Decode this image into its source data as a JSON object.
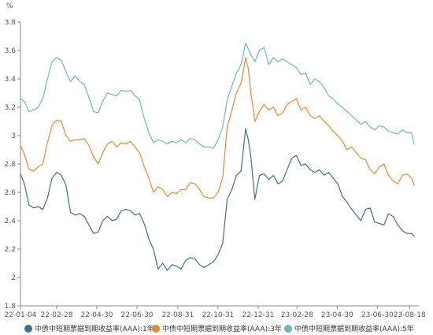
{
  "chart_data": {
    "type": "line",
    "ylabel": "%",
    "ylim": [
      1.8,
      3.8
    ],
    "yticks": [
      1.8,
      2,
      2.2,
      2.4,
      2.6,
      2.8,
      3,
      3.2,
      3.4,
      3.6,
      3.8
    ],
    "ytick_labels": [
      "1.8",
      "2",
      "2.2",
      "2.4",
      "2.6",
      "2.8",
      "3",
      "3.2",
      "3.4",
      "3.6",
      "3.8"
    ],
    "xlim": [
      "2022-01-04",
      "2023-09-01"
    ],
    "xtick_labels": [
      "22-01-04",
      "22-02-28",
      "22-04-30",
      "22-06-30",
      "22-08-31",
      "22-10-31",
      "22-12-31",
      "23-02-28",
      "23-04-30",
      "23-06-30",
      "23-08-18"
    ],
    "xtick_dates": [
      "2022-01-04",
      "2022-02-28",
      "2022-04-30",
      "2022-06-30",
      "2022-08-31",
      "2022-10-31",
      "2022-12-31",
      "2023-02-28",
      "2023-04-30",
      "2023-06-30",
      "2023-08-18"
    ],
    "grid": false,
    "legend_position": "bottom",
    "series": [
      {
        "name": "中债中短期票据到期收益率(AAA):1年",
        "color": "#3d6e96",
        "points": [
          [
            "2022-01-04",
            2.73
          ],
          [
            "2022-01-10",
            2.66
          ],
          [
            "2022-01-17",
            2.51
          ],
          [
            "2022-01-24",
            2.49
          ],
          [
            "2022-01-31",
            2.5
          ],
          [
            "2022-02-07",
            2.48
          ],
          [
            "2022-02-14",
            2.56
          ],
          [
            "2022-02-21",
            2.7
          ],
          [
            "2022-02-28",
            2.74
          ],
          [
            "2022-03-07",
            2.72
          ],
          [
            "2022-03-14",
            2.65
          ],
          [
            "2022-03-21",
            2.46
          ],
          [
            "2022-03-28",
            2.44
          ],
          [
            "2022-04-04",
            2.45
          ],
          [
            "2022-04-11",
            2.43
          ],
          [
            "2022-04-18",
            2.37
          ],
          [
            "2022-04-25",
            2.31
          ],
          [
            "2022-05-02",
            2.32
          ],
          [
            "2022-05-09",
            2.4
          ],
          [
            "2022-05-16",
            2.43
          ],
          [
            "2022-05-23",
            2.4
          ],
          [
            "2022-05-30",
            2.41
          ],
          [
            "2022-06-06",
            2.47
          ],
          [
            "2022-06-13",
            2.48
          ],
          [
            "2022-06-20",
            2.47
          ],
          [
            "2022-06-27",
            2.44
          ],
          [
            "2022-07-04",
            2.45
          ],
          [
            "2022-07-11",
            2.38
          ],
          [
            "2022-07-18",
            2.27
          ],
          [
            "2022-07-25",
            2.2
          ],
          [
            "2022-08-01",
            2.06
          ],
          [
            "2022-08-08",
            2.1
          ],
          [
            "2022-08-15",
            2.05
          ],
          [
            "2022-08-22",
            2.09
          ],
          [
            "2022-08-29",
            2.08
          ],
          [
            "2022-09-05",
            2.06
          ],
          [
            "2022-09-12",
            2.12
          ],
          [
            "2022-09-19",
            2.14
          ],
          [
            "2022-09-26",
            2.13
          ],
          [
            "2022-10-03",
            2.09
          ],
          [
            "2022-10-10",
            2.07
          ],
          [
            "2022-10-17",
            2.09
          ],
          [
            "2022-10-24",
            2.11
          ],
          [
            "2022-10-31",
            2.16
          ],
          [
            "2022-11-07",
            2.24
          ],
          [
            "2022-11-14",
            2.55
          ],
          [
            "2022-11-21",
            2.62
          ],
          [
            "2022-11-28",
            2.72
          ],
          [
            "2022-12-05",
            2.75
          ],
          [
            "2022-12-12",
            3.05
          ],
          [
            "2022-12-16",
            2.97
          ],
          [
            "2022-12-20",
            2.85
          ],
          [
            "2022-12-26",
            2.55
          ],
          [
            "2023-01-02",
            2.72
          ],
          [
            "2023-01-09",
            2.73
          ],
          [
            "2023-01-16",
            2.69
          ],
          [
            "2023-01-23",
            2.72
          ],
          [
            "2023-01-30",
            2.66
          ],
          [
            "2023-02-06",
            2.68
          ],
          [
            "2023-02-13",
            2.76
          ],
          [
            "2023-02-20",
            2.84
          ],
          [
            "2023-02-27",
            2.86
          ],
          [
            "2023-03-06",
            2.79
          ],
          [
            "2023-03-13",
            2.8
          ],
          [
            "2023-03-20",
            2.76
          ],
          [
            "2023-03-27",
            2.74
          ],
          [
            "2023-04-03",
            2.76
          ],
          [
            "2023-04-10",
            2.72
          ],
          [
            "2023-04-17",
            2.74
          ],
          [
            "2023-04-24",
            2.7
          ],
          [
            "2023-05-01",
            2.66
          ],
          [
            "2023-05-08",
            2.57
          ],
          [
            "2023-05-15",
            2.53
          ],
          [
            "2023-05-22",
            2.48
          ],
          [
            "2023-05-29",
            2.44
          ],
          [
            "2023-06-05",
            2.4
          ],
          [
            "2023-06-12",
            2.48
          ],
          [
            "2023-06-19",
            2.49
          ],
          [
            "2023-06-26",
            2.39
          ],
          [
            "2023-07-03",
            2.38
          ],
          [
            "2023-07-10",
            2.37
          ],
          [
            "2023-07-17",
            2.45
          ],
          [
            "2023-07-24",
            2.43
          ],
          [
            "2023-07-31",
            2.37
          ],
          [
            "2023-08-07",
            2.33
          ],
          [
            "2023-08-14",
            2.31
          ],
          [
            "2023-08-21",
            2.31
          ],
          [
            "2023-08-25",
            2.29
          ]
        ]
      },
      {
        "name": "中债中短期票据到期收益率(AAA):3年",
        "color": "#e58a2e",
        "points": [
          [
            "2022-01-04",
            2.93
          ],
          [
            "2022-01-10",
            2.87
          ],
          [
            "2022-01-17",
            2.76
          ],
          [
            "2022-01-24",
            2.75
          ],
          [
            "2022-01-31",
            2.78
          ],
          [
            "2022-02-07",
            2.8
          ],
          [
            "2022-02-14",
            2.95
          ],
          [
            "2022-02-21",
            3.07
          ],
          [
            "2022-02-28",
            3.11
          ],
          [
            "2022-03-07",
            3.1
          ],
          [
            "2022-03-14",
            3.0
          ],
          [
            "2022-03-21",
            2.96
          ],
          [
            "2022-03-28",
            2.97
          ],
          [
            "2022-04-04",
            2.97
          ],
          [
            "2022-04-11",
            2.98
          ],
          [
            "2022-04-18",
            2.93
          ],
          [
            "2022-04-25",
            2.85
          ],
          [
            "2022-05-02",
            2.8
          ],
          [
            "2022-05-09",
            2.88
          ],
          [
            "2022-05-16",
            2.94
          ],
          [
            "2022-05-23",
            2.96
          ],
          [
            "2022-05-30",
            2.92
          ],
          [
            "2022-06-06",
            2.95
          ],
          [
            "2022-06-13",
            2.94
          ],
          [
            "2022-06-20",
            2.96
          ],
          [
            "2022-06-27",
            2.92
          ],
          [
            "2022-07-04",
            2.88
          ],
          [
            "2022-07-11",
            2.78
          ],
          [
            "2022-07-18",
            2.7
          ],
          [
            "2022-07-25",
            2.6
          ],
          [
            "2022-08-01",
            2.64
          ],
          [
            "2022-08-08",
            2.62
          ],
          [
            "2022-08-15",
            2.57
          ],
          [
            "2022-08-22",
            2.6
          ],
          [
            "2022-08-29",
            2.59
          ],
          [
            "2022-09-05",
            2.62
          ],
          [
            "2022-09-12",
            2.62
          ],
          [
            "2022-09-19",
            2.67
          ],
          [
            "2022-09-26",
            2.66
          ],
          [
            "2022-10-03",
            2.62
          ],
          [
            "2022-10-10",
            2.57
          ],
          [
            "2022-10-17",
            2.56
          ],
          [
            "2022-10-24",
            2.56
          ],
          [
            "2022-10-31",
            2.6
          ],
          [
            "2022-11-07",
            2.7
          ],
          [
            "2022-11-14",
            3.06
          ],
          [
            "2022-11-21",
            3.18
          ],
          [
            "2022-11-28",
            3.3
          ],
          [
            "2022-12-05",
            3.37
          ],
          [
            "2022-12-12",
            3.55
          ],
          [
            "2022-12-16",
            3.47
          ],
          [
            "2022-12-20",
            3.3
          ],
          [
            "2022-12-26",
            3.1
          ],
          [
            "2023-01-02",
            3.17
          ],
          [
            "2023-01-09",
            3.22
          ],
          [
            "2023-01-16",
            3.18
          ],
          [
            "2023-01-23",
            3.2
          ],
          [
            "2023-01-30",
            3.14
          ],
          [
            "2023-02-06",
            3.16
          ],
          [
            "2023-02-13",
            3.22
          ],
          [
            "2023-02-20",
            3.24
          ],
          [
            "2023-02-27",
            3.26
          ],
          [
            "2023-03-06",
            3.18
          ],
          [
            "2023-03-13",
            3.2
          ],
          [
            "2023-03-20",
            3.14
          ],
          [
            "2023-03-27",
            3.12
          ],
          [
            "2023-04-03",
            3.14
          ],
          [
            "2023-04-10",
            3.1
          ],
          [
            "2023-04-17",
            3.07
          ],
          [
            "2023-04-24",
            3.03
          ],
          [
            "2023-05-01",
            3.0
          ],
          [
            "2023-05-08",
            2.96
          ],
          [
            "2023-05-15",
            2.9
          ],
          [
            "2023-05-22",
            2.92
          ],
          [
            "2023-05-29",
            2.88
          ],
          [
            "2023-06-05",
            2.84
          ],
          [
            "2023-06-12",
            2.83
          ],
          [
            "2023-06-19",
            2.76
          ],
          [
            "2023-06-26",
            2.73
          ],
          [
            "2023-07-03",
            2.78
          ],
          [
            "2023-07-10",
            2.8
          ],
          [
            "2023-07-17",
            2.72
          ],
          [
            "2023-07-24",
            2.68
          ],
          [
            "2023-07-31",
            2.66
          ],
          [
            "2023-08-07",
            2.72
          ],
          [
            "2023-08-14",
            2.73
          ],
          [
            "2023-08-21",
            2.7
          ],
          [
            "2023-08-25",
            2.65
          ]
        ]
      },
      {
        "name": "中债中短期票据到期收益率(AAA):5年",
        "color": "#6cb9b5",
        "points": [
          [
            "2022-01-04",
            3.26
          ],
          [
            "2022-01-10",
            3.24
          ],
          [
            "2022-01-17",
            3.17
          ],
          [
            "2022-01-24",
            3.18
          ],
          [
            "2022-01-31",
            3.2
          ],
          [
            "2022-02-07",
            3.26
          ],
          [
            "2022-02-14",
            3.4
          ],
          [
            "2022-02-21",
            3.52
          ],
          [
            "2022-02-28",
            3.55
          ],
          [
            "2022-03-07",
            3.53
          ],
          [
            "2022-03-14",
            3.45
          ],
          [
            "2022-03-21",
            3.38
          ],
          [
            "2022-03-28",
            3.42
          ],
          [
            "2022-04-04",
            3.38
          ],
          [
            "2022-04-11",
            3.36
          ],
          [
            "2022-04-18",
            3.27
          ],
          [
            "2022-04-25",
            3.17
          ],
          [
            "2022-05-02",
            3.16
          ],
          [
            "2022-05-09",
            3.24
          ],
          [
            "2022-05-16",
            3.3
          ],
          [
            "2022-05-23",
            3.29
          ],
          [
            "2022-05-30",
            3.28
          ],
          [
            "2022-06-06",
            3.32
          ],
          [
            "2022-06-13",
            3.31
          ],
          [
            "2022-06-20",
            3.32
          ],
          [
            "2022-06-27",
            3.28
          ],
          [
            "2022-07-04",
            3.25
          ],
          [
            "2022-07-11",
            3.12
          ],
          [
            "2022-07-18",
            3.02
          ],
          [
            "2022-07-25",
            2.95
          ],
          [
            "2022-08-01",
            2.97
          ],
          [
            "2022-08-08",
            2.96
          ],
          [
            "2022-08-15",
            2.94
          ],
          [
            "2022-08-22",
            2.96
          ],
          [
            "2022-08-29",
            2.95
          ],
          [
            "2022-09-05",
            2.97
          ],
          [
            "2022-09-12",
            2.95
          ],
          [
            "2022-09-19",
            2.98
          ],
          [
            "2022-09-26",
            2.97
          ],
          [
            "2022-10-03",
            2.94
          ],
          [
            "2022-10-10",
            2.92
          ],
          [
            "2022-10-17",
            2.92
          ],
          [
            "2022-10-24",
            2.91
          ],
          [
            "2022-10-31",
            2.97
          ],
          [
            "2022-11-07",
            3.06
          ],
          [
            "2022-11-14",
            3.25
          ],
          [
            "2022-11-21",
            3.35
          ],
          [
            "2022-11-28",
            3.44
          ],
          [
            "2022-12-05",
            3.5
          ],
          [
            "2022-12-12",
            3.65
          ],
          [
            "2022-12-16",
            3.61
          ],
          [
            "2022-12-20",
            3.57
          ],
          [
            "2022-12-26",
            3.52
          ],
          [
            "2023-01-02",
            3.6
          ],
          [
            "2023-01-09",
            3.62
          ],
          [
            "2023-01-16",
            3.5
          ],
          [
            "2023-01-23",
            3.55
          ],
          [
            "2023-01-30",
            3.52
          ],
          [
            "2023-02-06",
            3.54
          ],
          [
            "2023-02-13",
            3.52
          ],
          [
            "2023-02-20",
            3.5
          ],
          [
            "2023-02-27",
            3.48
          ],
          [
            "2023-03-06",
            3.43
          ],
          [
            "2023-03-13",
            3.44
          ],
          [
            "2023-03-20",
            3.36
          ],
          [
            "2023-03-27",
            3.4
          ],
          [
            "2023-04-03",
            3.38
          ],
          [
            "2023-04-10",
            3.34
          ],
          [
            "2023-04-17",
            3.28
          ],
          [
            "2023-04-24",
            3.26
          ],
          [
            "2023-05-01",
            3.22
          ],
          [
            "2023-05-08",
            3.2
          ],
          [
            "2023-05-15",
            3.17
          ],
          [
            "2023-05-22",
            3.14
          ],
          [
            "2023-05-29",
            3.11
          ],
          [
            "2023-06-05",
            3.08
          ],
          [
            "2023-06-12",
            3.1
          ],
          [
            "2023-06-19",
            3.06
          ],
          [
            "2023-06-26",
            3.04
          ],
          [
            "2023-07-03",
            3.07
          ],
          [
            "2023-07-10",
            3.06
          ],
          [
            "2023-07-17",
            3.03
          ],
          [
            "2023-07-24",
            3.02
          ],
          [
            "2023-07-31",
            3.01
          ],
          [
            "2023-08-07",
            3.04
          ],
          [
            "2023-08-14",
            3.02
          ],
          [
            "2023-08-21",
            3.02
          ],
          [
            "2023-08-25",
            2.94
          ]
        ]
      }
    ]
  }
}
